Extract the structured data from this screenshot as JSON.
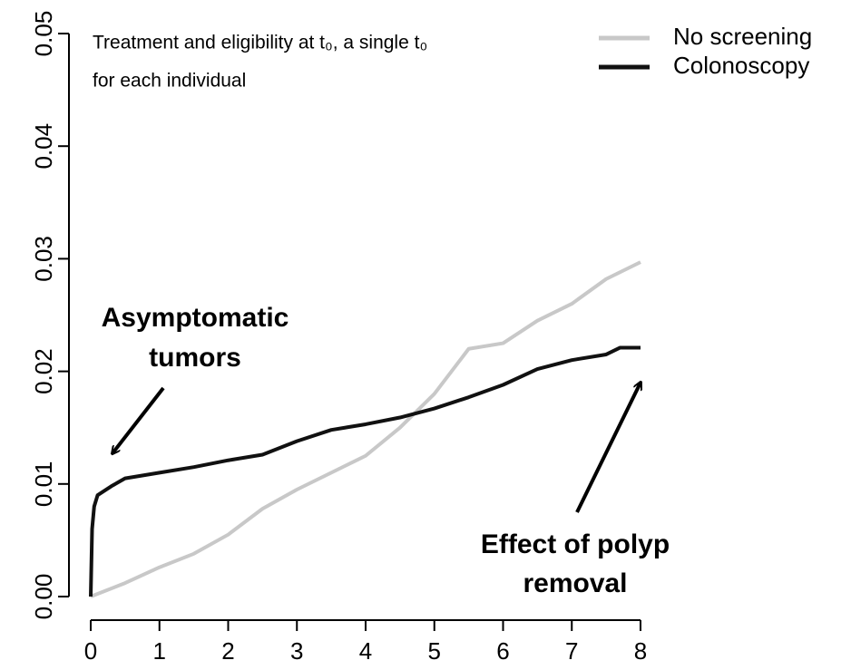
{
  "chart_data": {
    "type": "line",
    "note": [
      "Treatment and eligibility at t₀, a single t₀",
      "for each individual"
    ],
    "annotations": [
      [
        "Asymptomatic",
        "tumors"
      ],
      [
        "Effect of polyp",
        "removal"
      ]
    ],
    "xlim": [
      0,
      8
    ],
    "xticks": [
      0,
      1,
      2,
      3,
      4,
      5,
      6,
      7,
      8
    ],
    "ylim": [
      0,
      0.05
    ],
    "yticks": [
      {
        "value": 0,
        "label": "0.00"
      },
      {
        "value": 0.01,
        "label": "0.01"
      },
      {
        "value": 0.02,
        "label": "0.02"
      },
      {
        "value": 0.03,
        "label": "0.03"
      },
      {
        "value": 0.04,
        "label": "0.04"
      },
      {
        "value": 0.05,
        "label": "0.05"
      }
    ],
    "legend": "top-right",
    "series": [
      {
        "name": "No screening",
        "color": "#c8c8c8",
        "x": [
          0,
          0.5,
          1,
          1.5,
          2,
          2.5,
          3,
          3.5,
          4,
          4.5,
          5,
          5.5,
          6,
          6.5,
          7,
          7.5,
          8
        ],
        "values": [
          0,
          0.0012,
          0.0026,
          0.0038,
          0.0055,
          0.0078,
          0.0095,
          0.011,
          0.0125,
          0.015,
          0.018,
          0.022,
          0.0225,
          0.0245,
          0.026,
          0.0282,
          0.0297
        ]
      },
      {
        "name": "Colonoscopy",
        "color": "#111111",
        "x": [
          0,
          0.02,
          0.05,
          0.1,
          0.3,
          0.5,
          1,
          1.5,
          2,
          2.5,
          3,
          3.5,
          4,
          4.5,
          5,
          5.5,
          6,
          6.5,
          7,
          7.5,
          7.7,
          8
        ],
        "values": [
          0,
          0.006,
          0.008,
          0.009,
          0.0098,
          0.0105,
          0.011,
          0.0115,
          0.0121,
          0.0126,
          0.0138,
          0.0148,
          0.0153,
          0.0159,
          0.0167,
          0.0177,
          0.0188,
          0.0202,
          0.021,
          0.0215,
          0.0221,
          0.0221
        ]
      }
    ]
  }
}
